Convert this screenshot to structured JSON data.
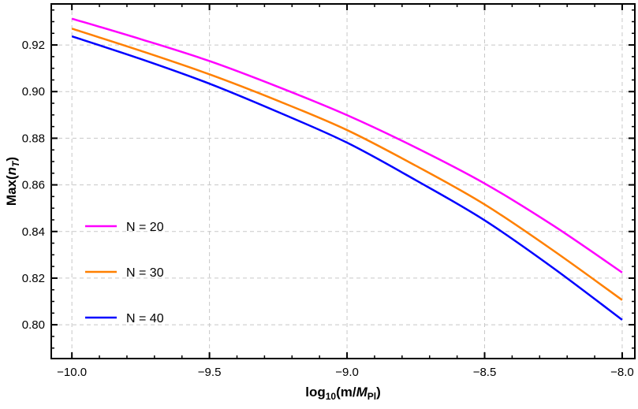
{
  "chart_data": {
    "type": "line",
    "title": "",
    "xlabel": {
      "base": "log",
      "sub": "10",
      "rest": "(m/",
      "italic": "M",
      "italic_sub": "Pl",
      "close": ")"
    },
    "ylabel": {
      "pre": "Max(",
      "italic": "n",
      "italic_sub": "T",
      "close": ")"
    },
    "xlim": [
      -10.075,
      -7.954
    ],
    "ylim": [
      0.7855,
      0.9376
    ],
    "xticks": [
      -10.0,
      -9.5,
      -9.0,
      -8.5,
      -8.0
    ],
    "xtick_labels": [
      "−10.0",
      "−9.5",
      "−9.0",
      "−8.5",
      "−8.0"
    ],
    "yticks": [
      0.8,
      0.82,
      0.84,
      0.86,
      0.88,
      0.9,
      0.92
    ],
    "ytick_labels": [
      "0.80",
      "0.82",
      "0.84",
      "0.86",
      "0.88",
      "0.90",
      "0.92"
    ],
    "grid": true,
    "legend_placement": "left",
    "x": [
      -10.0,
      -9.75,
      -9.5,
      -9.25,
      -9.0,
      -8.75,
      -8.5,
      -8.25,
      -8.0
    ],
    "series": [
      {
        "name": "N = 20",
        "color": "#ff00ff",
        "values": [
          0.9313,
          0.9225,
          0.9131,
          0.902,
          0.8899,
          0.876,
          0.8606,
          0.8425,
          0.8224
        ]
      },
      {
        "name": "N = 30",
        "color": "#ff8000",
        "values": [
          0.927,
          0.9175,
          0.9074,
          0.896,
          0.8835,
          0.8682,
          0.8516,
          0.8318,
          0.8106
        ]
      },
      {
        "name": "N = 40",
        "color": "#0000ff",
        "values": [
          0.9237,
          0.914,
          0.9034,
          0.8912,
          0.8781,
          0.862,
          0.8448,
          0.8243,
          0.8021
        ]
      }
    ]
  }
}
